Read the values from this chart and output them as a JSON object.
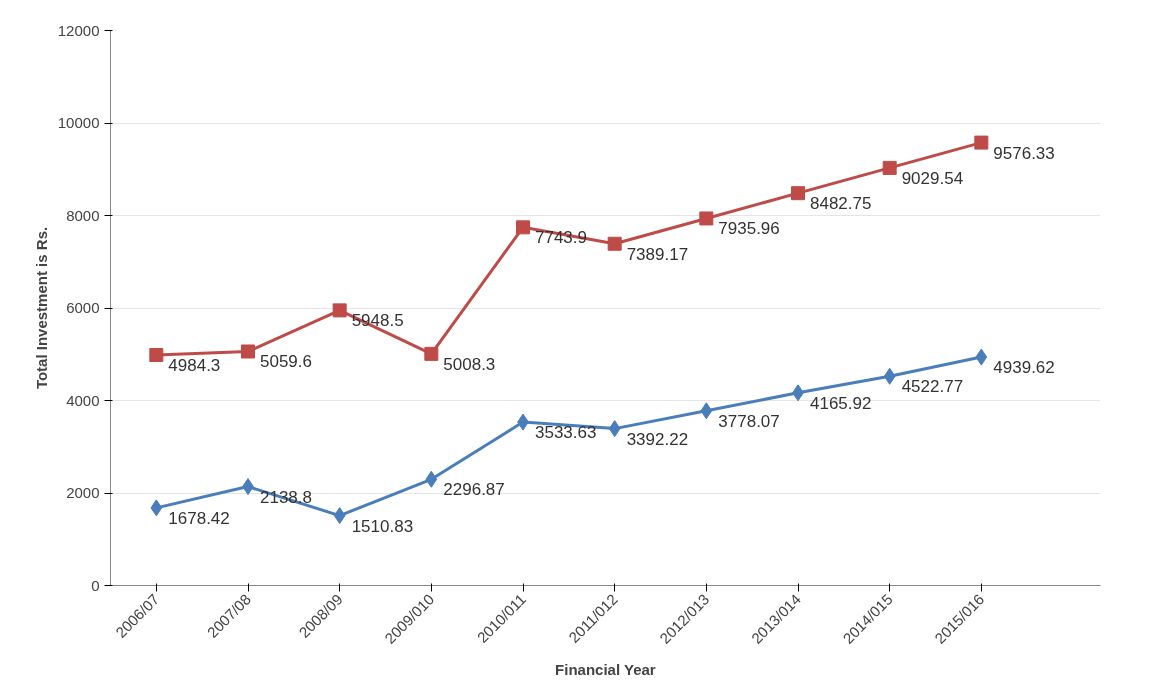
{
  "chart_data": {
    "type": "line",
    "xlabel": "Financial Year",
    "ylabel": "Total Investment is Rs.",
    "categories": [
      "2006/07",
      "2007/08",
      "2008/09",
      "2009/010",
      "2010/011",
      "2011/012",
      "2012/013",
      "2013/014",
      "2014/015",
      "2015/016"
    ],
    "series": [
      {
        "color": "#4a7ebb",
        "marker": "diamond",
        "values": [
          1678.42,
          2138.8,
          1510.83,
          2296.87,
          3533.63,
          3392.22,
          3778.07,
          4165.92,
          4522.77,
          4939.62
        ]
      },
      {
        "color": "#be4b48",
        "marker": "square",
        "values": [
          4984.3,
          5059.6,
          5948.5,
          5008.3,
          7743.9,
          7389.17,
          7935.96,
          8482.75,
          9029.54,
          9576.33
        ]
      }
    ],
    "ylim": [
      0,
      12000
    ],
    "yticks": [
      0,
      2000,
      4000,
      6000,
      8000,
      10000,
      12000
    ],
    "grid": "y",
    "data_labels": true,
    "line_style": "solid"
  }
}
